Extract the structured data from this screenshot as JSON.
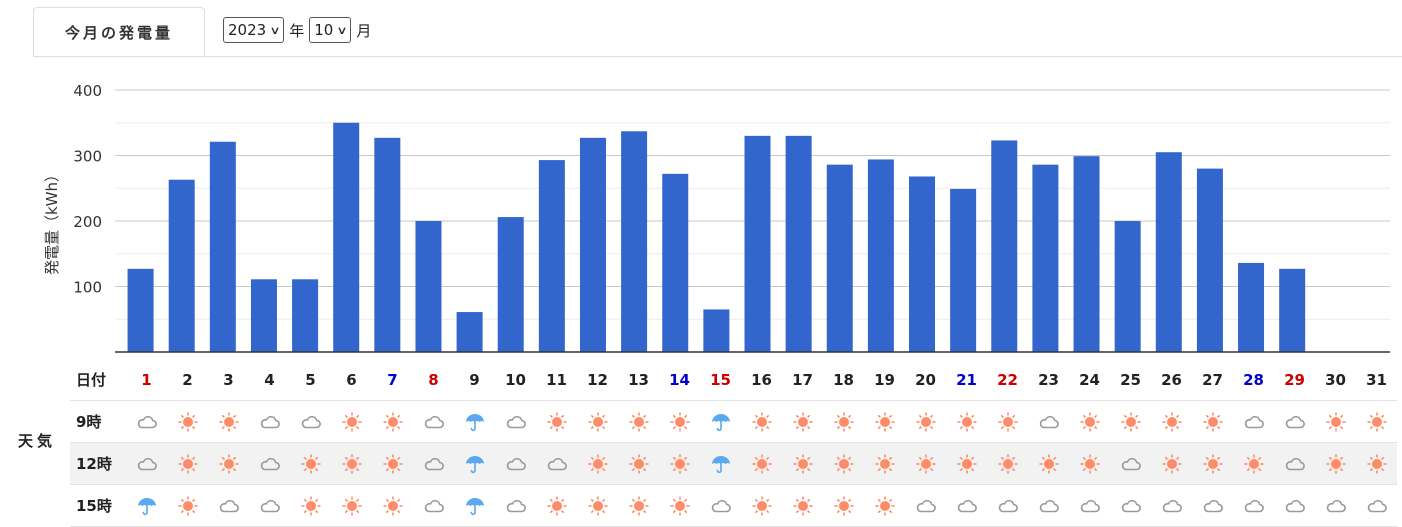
{
  "tab": {
    "label": "今月の発電量"
  },
  "controls": {
    "year": "2023",
    "year_unit": "年",
    "month": "10",
    "month_unit": "月"
  },
  "chart_data": {
    "type": "bar",
    "ylabel": "発電量（kWh）",
    "ylim": [
      0,
      400
    ],
    "yticks": [
      100,
      200,
      300,
      400
    ],
    "grid": true,
    "color": "#3366cc",
    "categories": [
      "1",
      "2",
      "3",
      "4",
      "5",
      "6",
      "7",
      "8",
      "9",
      "10",
      "11",
      "12",
      "13",
      "14",
      "15",
      "16",
      "17",
      "18",
      "19",
      "20",
      "21",
      "22",
      "23",
      "24",
      "25",
      "26",
      "27",
      "28",
      "29",
      "30",
      "31"
    ],
    "values": [
      127,
      263,
      321,
      111,
      111,
      350,
      327,
      200,
      61,
      206,
      293,
      327,
      337,
      272,
      65,
      330,
      330,
      286,
      294,
      268,
      249,
      323,
      286,
      299,
      200,
      305,
      280,
      136,
      127,
      0,
      0
    ]
  },
  "table": {
    "date_header": "日付",
    "weather_label": "天気",
    "days": [
      {
        "d": "1",
        "c": "#cc0000"
      },
      {
        "d": "2",
        "c": "#222"
      },
      {
        "d": "3",
        "c": "#222"
      },
      {
        "d": "4",
        "c": "#222"
      },
      {
        "d": "5",
        "c": "#222"
      },
      {
        "d": "6",
        "c": "#222"
      },
      {
        "d": "7",
        "c": "#0000cc"
      },
      {
        "d": "8",
        "c": "#cc0000"
      },
      {
        "d": "9",
        "c": "#222"
      },
      {
        "d": "10",
        "c": "#222"
      },
      {
        "d": "11",
        "c": "#222"
      },
      {
        "d": "12",
        "c": "#222"
      },
      {
        "d": "13",
        "c": "#222"
      },
      {
        "d": "14",
        "c": "#0000cc"
      },
      {
        "d": "15",
        "c": "#cc0000"
      },
      {
        "d": "16",
        "c": "#222"
      },
      {
        "d": "17",
        "c": "#222"
      },
      {
        "d": "18",
        "c": "#222"
      },
      {
        "d": "19",
        "c": "#222"
      },
      {
        "d": "20",
        "c": "#222"
      },
      {
        "d": "21",
        "c": "#0000cc"
      },
      {
        "d": "22",
        "c": "#cc0000"
      },
      {
        "d": "23",
        "c": "#222"
      },
      {
        "d": "24",
        "c": "#222"
      },
      {
        "d": "25",
        "c": "#222"
      },
      {
        "d": "26",
        "c": "#222"
      },
      {
        "d": "27",
        "c": "#222"
      },
      {
        "d": "28",
        "c": "#0000cc"
      },
      {
        "d": "29",
        "c": "#cc0000"
      },
      {
        "d": "30",
        "c": "#222"
      },
      {
        "d": "31",
        "c": "#222"
      }
    ],
    "rows": [
      {
        "label": "9時",
        "icons": "CSSCCSSCRCSSSSRSSSSSSSCSSSSCCSS"
      },
      {
        "label": "12時",
        "icons": "CSSCSSSCRCCSSSRSSSSSSSSSCSSSCSS"
      },
      {
        "label": "15時",
        "icons": "RSCCSSSCRCSSSSCSSSSCCCCCCCCCCCC"
      }
    ]
  }
}
